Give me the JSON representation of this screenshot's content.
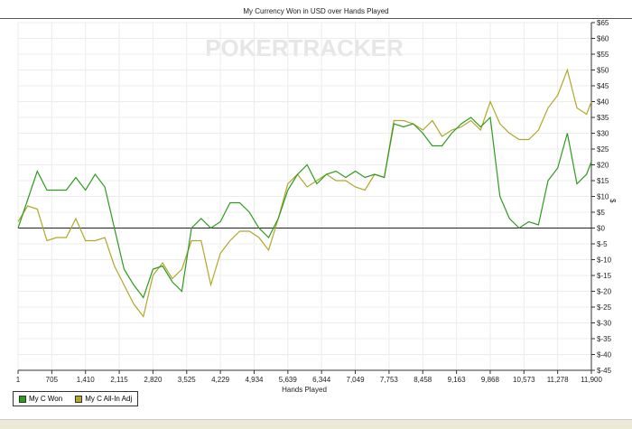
{
  "chart_data": {
    "type": "line",
    "title": "My Currency Won in USD over Hands Played",
    "xlabel": "Hands Played",
    "ylabel": "$",
    "xlim": [
      1,
      11900
    ],
    "ylim": [
      -45,
      65
    ],
    "x_ticks": [
      "1",
      "705",
      "1,410",
      "2,115",
      "2,820",
      "3,525",
      "4,229",
      "4,934",
      "5,639",
      "6,344",
      "7,049",
      "7,753",
      "8,458",
      "9,163",
      "9,868",
      "10,573",
      "11,278",
      "11,900"
    ],
    "y_ticks": [
      65,
      60,
      55,
      50,
      45,
      40,
      35,
      30,
      25,
      20,
      15,
      10,
      5,
      0,
      -5,
      -10,
      -15,
      -20,
      -25,
      -30,
      -35,
      -40,
      -45
    ],
    "y_tick_labels": [
      "$65",
      "$60",
      "$55",
      "$50",
      "$45",
      "$40",
      "$35",
      "$30",
      "$25",
      "$20",
      "$15",
      "$10",
      "$5",
      "$0",
      "$-5",
      "$-10",
      "$-15",
      "$-20",
      "$-25",
      "$-30",
      "$-35",
      "$-40",
      "$-45"
    ],
    "grid": true,
    "legend": "bottom-left",
    "x_step_hands": 200,
    "series": [
      {
        "name": "My C Won",
        "color": "#2e9a1e",
        "values": [
          0,
          9,
          18,
          12,
          12,
          12,
          16,
          12,
          17,
          13,
          0,
          -13,
          -18,
          -22,
          -13,
          -12,
          -17,
          -20,
          0,
          3,
          0,
          2,
          8,
          8,
          5,
          0,
          -3,
          3,
          12,
          17,
          20,
          14,
          17,
          18,
          16,
          18,
          16,
          17,
          16,
          33,
          32,
          33,
          30,
          26,
          26,
          30,
          33,
          35,
          32,
          35,
          10,
          3,
          0,
          2,
          1,
          15,
          19,
          30,
          14,
          17,
          21
        ]
      },
      {
        "name": "My C All-In Adj",
        "color": "#b0a82a",
        "values": [
          2,
          7,
          6,
          -4,
          -3,
          -3,
          3,
          -4,
          -4,
          -3,
          -12,
          -18,
          -24,
          -28,
          -15,
          -11,
          -16,
          -13,
          -4,
          -4,
          -18,
          -8,
          -4,
          -1,
          -1,
          -3,
          -7,
          3,
          14,
          17,
          13,
          15,
          17,
          15,
          15,
          13,
          12,
          17,
          16,
          34,
          34,
          33,
          31,
          34,
          29,
          31,
          32,
          34,
          31,
          40,
          33,
          30,
          28,
          28,
          31,
          38,
          42,
          50,
          38,
          36,
          40
        ]
      }
    ]
  },
  "watermark": "POKERTRACKER"
}
